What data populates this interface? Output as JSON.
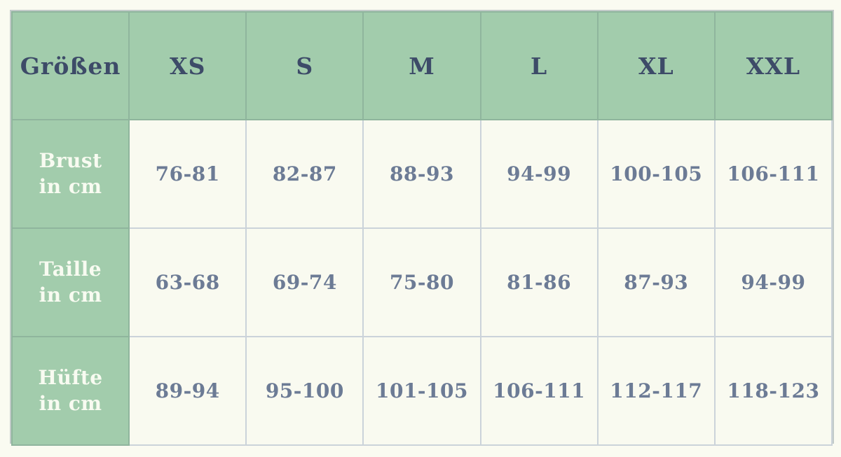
{
  "colors": {
    "accent_green": "#a2ccac",
    "page_background": "#fafbf1",
    "header_text": "#3d4b68",
    "value_text": "#6c7b95",
    "label_text": "#f8fbf1"
  },
  "chart_data": {
    "type": "table",
    "corner_label": "Größen",
    "columns": [
      "XS",
      "S",
      "M",
      "L",
      "XL",
      "XXL"
    ],
    "rows": [
      {
        "label": "Brust",
        "unit": "in cm",
        "values": [
          "76-81",
          "82-87",
          "88-93",
          "94-99",
          "100-105",
          "106-111"
        ]
      },
      {
        "label": "Taille",
        "unit": "in cm",
        "values": [
          "63-68",
          "69-74",
          "75-80",
          "81-86",
          "87-93",
          "94-99"
        ]
      },
      {
        "label": "Hüfte",
        "unit": "in cm",
        "values": [
          "89-94",
          "95-100",
          "101-105",
          "106-111",
          "112-117",
          "118-123"
        ]
      }
    ]
  }
}
